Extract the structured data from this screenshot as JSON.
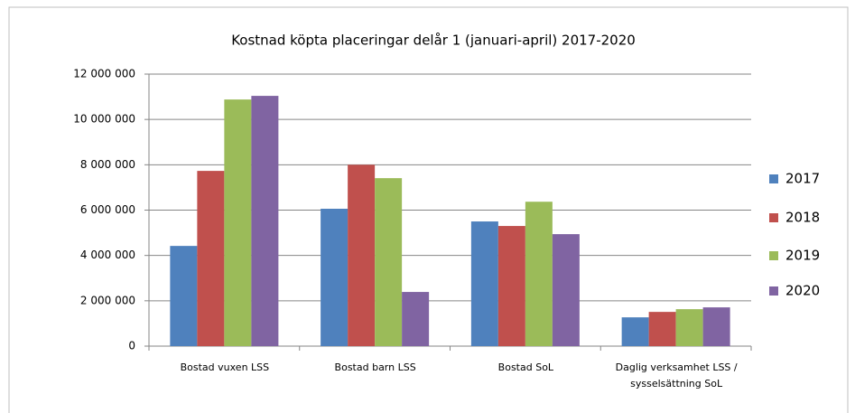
{
  "chart_data": {
    "type": "bar",
    "title": "Kostnad köpta placeringar delår 1 (januari-april) 2017-2020",
    "categories": [
      "Bostad vuxen LSS",
      "Bostad barn LSS",
      "Bostad SoL",
      "Daglig verksamhet LSS / sysselsättning SoL"
    ],
    "series": [
      {
        "name": "2017",
        "color": "#4f81bd",
        "values": [
          4420000,
          6060000,
          5500000,
          1270000
        ]
      },
      {
        "name": "2018",
        "color": "#c0504d",
        "values": [
          7730000,
          8000000,
          5300000,
          1510000
        ]
      },
      {
        "name": "2019",
        "color": "#9bbb59",
        "values": [
          10880000,
          7410000,
          6370000,
          1630000
        ]
      },
      {
        "name": "2020",
        "color": "#8064a2",
        "values": [
          11040000,
          2390000,
          4940000,
          1710000
        ]
      }
    ],
    "ylim": [
      0,
      12000000
    ],
    "yticks": [
      0,
      {
        "value": 2000000,
        "label": "2 000 000"
      },
      {
        "value": 4000000,
        "label": "4 000 000"
      },
      {
        "value": 6000000,
        "label": "6 000 000"
      },
      {
        "value": 8000000,
        "label": "8 000 000"
      },
      {
        "value": 10000000,
        "label": "10 000 000"
      },
      {
        "value": 12000000,
        "label": "12 000 000"
      }
    ],
    "grid": true,
    "legend": "right"
  }
}
